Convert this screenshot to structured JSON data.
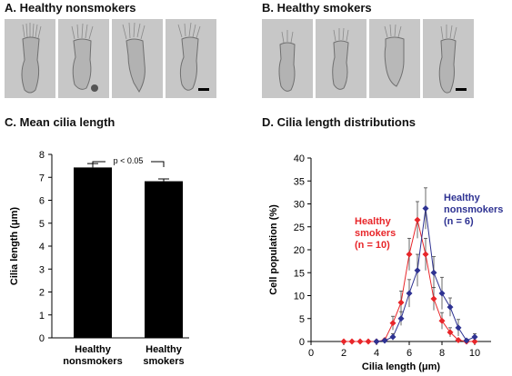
{
  "panels": {
    "A": {
      "title": "A. Healthy nonsmokers",
      "image_count": 4
    },
    "B": {
      "title": "B. Healthy smokers",
      "image_count": 4
    },
    "C": {
      "title": "C. Mean cilia length"
    },
    "D": {
      "title": "D. Cilia length distributions"
    }
  },
  "colors": {
    "bar": "#000000",
    "smokers": "#e8262a",
    "nonsmokers": "#2e3292"
  },
  "chart_data": [
    {
      "type": "bar",
      "title": "C. Mean cilia length",
      "categories": [
        [
          "Healthy",
          "nonsmokers"
        ],
        [
          "Healthy",
          "smokers"
        ]
      ],
      "values": [
        7.43,
        6.83
      ],
      "errors": [
        0.17,
        0.1
      ],
      "ylabel": "Cilia length (μm)",
      "ylim": [
        0,
        8
      ],
      "yticks": [
        "0",
        "1",
        "2",
        "3",
        "4",
        "5",
        "6",
        "7",
        "8"
      ],
      "annotation": "p < 0.05"
    },
    {
      "type": "line",
      "title": "D. Cilia length distributions",
      "xlabel": "Cilia length (μm)",
      "ylabel": "Cell population (%)",
      "xlim": [
        0,
        11
      ],
      "ylim": [
        0,
        40
      ],
      "xticks": [
        "0",
        "2",
        "4",
        "6",
        "8",
        "10"
      ],
      "yticks": [
        "0",
        "5",
        "10",
        "15",
        "20",
        "25",
        "30",
        "35",
        "40"
      ],
      "series": [
        {
          "name": "Healthy smokers",
          "label_lines": [
            "Healthy",
            "smokers",
            "(n = 10)"
          ],
          "color": "#e8262a",
          "marker": "diamond",
          "x": [
            2,
            2.5,
            3,
            3.5,
            4,
            4.5,
            5,
            5.5,
            6,
            6.5,
            7,
            7.5,
            8,
            8.5,
            9,
            9.5,
            10
          ],
          "y": [
            0,
            0,
            0,
            0,
            0,
            0.3,
            4,
            8.5,
            19,
            26.5,
            19,
            9.3,
            4.5,
            2,
            0.3,
            0,
            0
          ],
          "err": [
            0,
            0,
            0,
            0,
            0,
            0.3,
            1.5,
            2.5,
            3.5,
            4,
            3.5,
            2.5,
            1.8,
            1,
            0.3,
            0,
            0
          ]
        },
        {
          "name": "Healthy nonsmokers",
          "label_lines": [
            "Healthy",
            "nonsmokers",
            "(n = 6)"
          ],
          "color": "#2e3292",
          "marker": "diamond",
          "x": [
            4,
            4.5,
            5,
            5.5,
            6,
            6.5,
            7,
            7.5,
            8,
            8.5,
            9,
            9.5,
            10
          ],
          "y": [
            0,
            0.2,
            1,
            5,
            10.5,
            15.5,
            29,
            15,
            10.5,
            7.5,
            3,
            0.2,
            1
          ],
          "err": [
            0,
            0.3,
            0.7,
            1.5,
            3,
            3.5,
            4.5,
            3.5,
            3.5,
            2,
            1.8,
            0.3,
            0.7
          ]
        }
      ]
    }
  ]
}
